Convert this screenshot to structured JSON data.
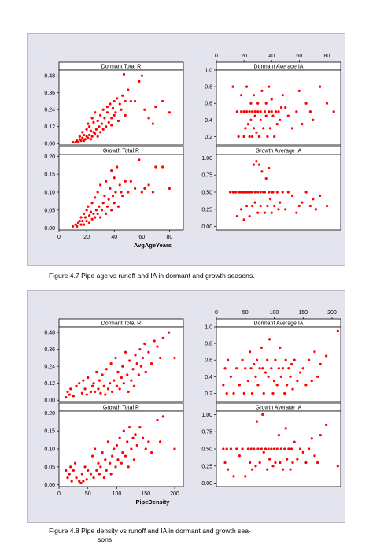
{
  "figures": [
    {
      "caption": "Figure 4.7  Pipe age vs runoff and IA in dormant and growth seasons.",
      "xlabel": "AvgAgeYears",
      "xticks": [
        0,
        20,
        40,
        60,
        80
      ],
      "panels": [
        {
          "title": "Dormant Total R",
          "yticks": [
            "0.48",
            "0.36",
            "0.24",
            "0.12",
            "0.00"
          ]
        },
        {
          "title": "Dormant Average IA",
          "yticks": [
            "1.0",
            "0.8",
            "0.6",
            "0.4",
            "0.2"
          ]
        },
        {
          "title": "Growth Total R",
          "yticks": [
            "0.20",
            "0.15",
            "0.10",
            "0.05",
            "0.00"
          ]
        },
        {
          "title": "Growth Average IA",
          "yticks": [
            "1.00",
            "0.75",
            "0.50",
            "0.25",
            "0.00"
          ]
        }
      ]
    },
    {
      "caption": "Figure 4.8  Pipe density vs runoff and IA in dormant and growth seasons.",
      "caption_line1": "Figure 4.8  Pipe density vs runoff and IA in dormant and growth sea-",
      "caption_line2": "sons.",
      "xlabel": "PipeDensity",
      "xticks": [
        0,
        50,
        100,
        150,
        200
      ],
      "panels": [
        {
          "title": "Dormant Total R",
          "yticks": [
            "0.48",
            "0.36",
            "0.24",
            "0.12",
            "0.00"
          ]
        },
        {
          "title": "Dormant Average IA",
          "yticks": [
            "1.0",
            "0.8",
            "0.6",
            "0.4",
            "0.2"
          ]
        },
        {
          "title": "Growth Total R",
          "yticks": [
            "0.20",
            "0.15",
            "0.10",
            "0.05",
            "0.00"
          ]
        },
        {
          "title": "Growth Average IA",
          "yticks": [
            "1.00",
            "0.75",
            "0.50",
            "0.25",
            "0.00"
          ]
        }
      ]
    }
  ],
  "chart_data": [
    {
      "type": "scatter",
      "title": "",
      "xlabel": "AvgAgeYears",
      "xlim": [
        0,
        90
      ],
      "marker_color": "#ff0000",
      "panels": [
        {
          "name": "Dormant Total R",
          "ylim": [
            -0.01,
            0.52
          ],
          "x": [
            10,
            12,
            13,
            14,
            15,
            15,
            16,
            17,
            17,
            18,
            18,
            19,
            20,
            20,
            21,
            21,
            22,
            22,
            23,
            23,
            24,
            24,
            25,
            25,
            26,
            26,
            27,
            28,
            28,
            29,
            30,
            30,
            31,
            32,
            32,
            33,
            34,
            35,
            35,
            36,
            37,
            38,
            38,
            39,
            40,
            40,
            41,
            42,
            43,
            44,
            45,
            46,
            47,
            48,
            48,
            50,
            52,
            55,
            58,
            60,
            62,
            65,
            68,
            70,
            75,
            80
          ],
          "y": [
            0.01,
            0.01,
            0.02,
            0.01,
            0.03,
            0.05,
            0.02,
            0.04,
            0.08,
            0.02,
            0.06,
            0.03,
            0.05,
            0.1,
            0.04,
            0.14,
            0.06,
            0.12,
            0.03,
            0.09,
            0.05,
            0.18,
            0.08,
            0.15,
            0.07,
            0.22,
            0.1,
            0.05,
            0.16,
            0.12,
            0.08,
            0.2,
            0.14,
            0.1,
            0.24,
            0.18,
            0.12,
            0.22,
            0.26,
            0.15,
            0.28,
            0.18,
            0.13,
            0.25,
            0.3,
            0.2,
            0.22,
            0.32,
            0.16,
            0.28,
            0.24,
            0.34,
            0.49,
            0.3,
            0.2,
            0.38,
            0.3,
            0.3,
            0.44,
            0.48,
            0.24,
            0.18,
            0.14,
            0.26,
            0.3,
            0.22
          ]
        },
        {
          "name": "Dormant Average IA",
          "ylim": [
            0.1,
            1.0
          ],
          "x": [
            12,
            15,
            16,
            18,
            18,
            20,
            20,
            21,
            22,
            22,
            23,
            24,
            24,
            25,
            25,
            26,
            26,
            27,
            27,
            28,
            28,
            29,
            30,
            30,
            31,
            32,
            32,
            33,
            34,
            35,
            36,
            36,
            37,
            38,
            38,
            39,
            40,
            40,
            41,
            42,
            43,
            44,
            45,
            46,
            47,
            48,
            50,
            52,
            55,
            58,
            60,
            62,
            65,
            68,
            70,
            75,
            80,
            85
          ],
          "y": [
            0.8,
            0.5,
            0.2,
            0.7,
            0.5,
            0.5,
            0.2,
            0.3,
            0.5,
            0.8,
            0.35,
            0.2,
            0.5,
            0.6,
            0.4,
            0.2,
            0.5,
            0.3,
            0.7,
            0.5,
            0.45,
            0.25,
            0.5,
            0.6,
            0.2,
            0.4,
            0.5,
            0.75,
            0.3,
            0.5,
            0.6,
            0.45,
            0.2,
            0.5,
            0.8,
            0.3,
            0.5,
            0.65,
            0.45,
            0.2,
            0.5,
            0.35,
            0.5,
            0.4,
            0.55,
            0.7,
            0.55,
            0.45,
            0.3,
            0.5,
            0.75,
            0.35,
            0.6,
            0.5,
            0.4,
            0.8,
            0.6,
            0.5
          ]
        },
        {
          "name": "Growth Total R",
          "ylim": [
            -0.005,
            0.205
          ],
          "x": [
            10,
            12,
            13,
            14,
            15,
            16,
            16,
            17,
            18,
            18,
            19,
            20,
            20,
            21,
            22,
            22,
            23,
            24,
            24,
            25,
            26,
            26,
            27,
            28,
            28,
            29,
            30,
            30,
            31,
            32,
            33,
            34,
            34,
            35,
            36,
            37,
            38,
            38,
            39,
            40,
            40,
            41,
            42,
            43,
            44,
            45,
            46,
            48,
            50,
            52,
            55,
            58,
            60,
            62,
            65,
            68,
            70,
            75,
            80
          ],
          "y": [
            0.005,
            0.01,
            0.005,
            0.015,
            0.02,
            0.01,
            0.03,
            0.02,
            0.04,
            0.01,
            0.03,
            0.05,
            0.02,
            0.06,
            0.035,
            0.015,
            0.045,
            0.07,
            0.025,
            0.04,
            0.085,
            0.03,
            0.05,
            0.04,
            0.1,
            0.06,
            0.03,
            0.12,
            0.05,
            0.07,
            0.09,
            0.04,
            0.13,
            0.06,
            0.08,
            0.11,
            0.05,
            0.16,
            0.09,
            0.07,
            0.14,
            0.1,
            0.17,
            0.06,
            0.12,
            0.1,
            0.09,
            0.13,
            0.1,
            0.13,
            0.11,
            0.19,
            0.1,
            0.11,
            0.12,
            0.1,
            0.17,
            0.17,
            0.11
          ]
        },
        {
          "name": "Growth Average IA",
          "ylim": [
            -0.05,
            1.05
          ],
          "x": [
            10,
            12,
            13,
            14,
            15,
            16,
            17,
            18,
            18,
            19,
            20,
            20,
            21,
            22,
            22,
            23,
            24,
            24,
            25,
            26,
            26,
            27,
            28,
            28,
            29,
            30,
            30,
            31,
            32,
            32,
            33,
            34,
            35,
            35,
            36,
            37,
            38,
            38,
            39,
            40,
            40,
            41,
            42,
            44,
            45,
            46,
            48,
            50,
            52,
            55,
            58,
            60,
            62,
            65,
            68,
            70,
            72,
            75,
            80
          ],
          "y": [
            0.5,
            0.5,
            0.5,
            0.5,
            0.15,
            0.5,
            0.5,
            0.5,
            0.25,
            0.5,
            0.5,
            0.1,
            0.5,
            0.5,
            0.3,
            0.5,
            0.5,
            0.15,
            0.5,
            0.5,
            0.3,
            0.9,
            0.5,
            0.35,
            0.95,
            0.5,
            0.2,
            0.9,
            0.5,
            0.3,
            0.8,
            0.5,
            0.2,
            0.5,
            0.7,
            0.3,
            0.5,
            0.85,
            0.4,
            0.5,
            0.2,
            0.5,
            0.3,
            0.5,
            0.25,
            0.35,
            0.5,
            0.25,
            0.5,
            0.45,
            0.2,
            0.3,
            0.35,
            0.5,
            0.3,
            0.4,
            0.25,
            0.45,
            0.3
          ]
        }
      ]
    },
    {
      "type": "scatter",
      "title": "",
      "xlabel": "PipeDensity",
      "xlim": [
        0,
        215
      ],
      "marker_color": "#ff0000",
      "panels": [
        {
          "name": "Dormant Total R",
          "ylim": [
            -0.01,
            0.52
          ],
          "x": [
            12,
            15,
            18,
            20,
            25,
            30,
            35,
            40,
            42,
            45,
            48,
            50,
            55,
            58,
            60,
            62,
            65,
            68,
            70,
            72,
            75,
            78,
            80,
            82,
            85,
            88,
            90,
            92,
            95,
            98,
            100,
            102,
            105,
            108,
            110,
            112,
            115,
            118,
            120,
            122,
            125,
            128,
            130,
            132,
            135,
            138,
            140,
            142,
            145,
            148,
            150,
            155,
            160,
            165,
            170,
            175,
            180,
            190,
            200
          ],
          "y": [
            0.02,
            0.06,
            0.04,
            0.08,
            0.03,
            0.1,
            0.12,
            0.05,
            0.14,
            0.08,
            0.04,
            0.16,
            0.06,
            0.1,
            0.12,
            0.06,
            0.2,
            0.08,
            0.14,
            0.05,
            0.18,
            0.1,
            0.04,
            0.22,
            0.08,
            0.12,
            0.26,
            0.06,
            0.14,
            0.3,
            0.1,
            0.2,
            0.08,
            0.16,
            0.24,
            0.12,
            0.34,
            0.18,
            0.06,
            0.28,
            0.14,
            0.22,
            0.1,
            0.32,
            0.26,
            0.18,
            0.36,
            0.24,
            0.3,
            0.4,
            0.2,
            0.34,
            0.26,
            0.42,
            0.38,
            0.3,
            0.44,
            0.48,
            0.3
          ]
        },
        {
          "name": "Dormant Average IA",
          "ylim": [
            0.1,
            1.0
          ],
          "x": [
            12,
            15,
            18,
            20,
            25,
            30,
            35,
            40,
            45,
            48,
            50,
            55,
            58,
            60,
            62,
            65,
            68,
            70,
            72,
            75,
            78,
            80,
            82,
            85,
            88,
            90,
            92,
            95,
            98,
            100,
            102,
            105,
            108,
            110,
            112,
            115,
            118,
            120,
            122,
            125,
            128,
            130,
            132,
            135,
            140,
            145,
            150,
            155,
            160,
            165,
            170,
            175,
            180,
            190,
            210
          ],
          "y": [
            0.3,
            0.5,
            0.2,
            0.6,
            0.4,
            0.2,
            0.5,
            0.3,
            0.6,
            0.2,
            0.5,
            0.35,
            0.7,
            0.5,
            0.2,
            0.55,
            0.4,
            0.6,
            0.3,
            0.5,
            0.75,
            0.5,
            0.2,
            0.45,
            0.6,
            0.4,
            0.85,
            0.5,
            0.2,
            0.35,
            0.6,
            0.3,
            0.5,
            0.75,
            0.4,
            0.5,
            0.2,
            0.6,
            0.3,
            0.5,
            0.4,
            0.55,
            0.25,
            0.6,
            0.35,
            0.45,
            0.5,
            0.3,
            0.6,
            0.35,
            0.7,
            0.4,
            0.55,
            0.65,
            0.95
          ]
        },
        {
          "name": "Growth Total R",
          "ylim": [
            -0.005,
            0.205
          ],
          "x": [
            12,
            15,
            18,
            20,
            22,
            25,
            28,
            30,
            35,
            38,
            40,
            42,
            45,
            48,
            50,
            55,
            58,
            60,
            62,
            65,
            68,
            70,
            72,
            75,
            78,
            80,
            82,
            85,
            88,
            90,
            92,
            95,
            98,
            100,
            102,
            105,
            108,
            110,
            112,
            115,
            118,
            120,
            122,
            125,
            128,
            130,
            132,
            135,
            140,
            145,
            150,
            155,
            160,
            170,
            175,
            180,
            200
          ],
          "y": [
            0.04,
            0.02,
            0.03,
            0.05,
            0.01,
            0.04,
            0.06,
            0.02,
            0.01,
            0.005,
            0.03,
            0.01,
            0.05,
            0.015,
            0.04,
            0.03,
            0.08,
            0.02,
            0.1,
            0.04,
            0.06,
            0.03,
            0.05,
            0.09,
            0.02,
            0.07,
            0.04,
            0.12,
            0.06,
            0.03,
            0.08,
            0.1,
            0.05,
            0.11,
            0.07,
            0.13,
            0.06,
            0.09,
            0.15,
            0.08,
            0.12,
            0.05,
            0.16,
            0.1,
            0.13,
            0.07,
            0.14,
            0.11,
            0.16,
            0.13,
            0.1,
            0.12,
            0.09,
            0.18,
            0.12,
            0.19,
            0.1
          ]
        },
        {
          "name": "Growth Average IA",
          "ylim": [
            -0.05,
            1.05
          ],
          "x": [
            12,
            15,
            18,
            20,
            25,
            30,
            35,
            40,
            45,
            50,
            55,
            58,
            60,
            62,
            65,
            68,
            70,
            72,
            75,
            78,
            80,
            82,
            85,
            88,
            90,
            92,
            95,
            98,
            100,
            102,
            105,
            108,
            110,
            112,
            115,
            118,
            120,
            122,
            125,
            128,
            130,
            132,
            135,
            140,
            145,
            150,
            155,
            160,
            165,
            170,
            175,
            180,
            190,
            210
          ],
          "y": [
            0.5,
            0.3,
            0.5,
            0.2,
            0.5,
            0.1,
            0.5,
            0.4,
            0.5,
            0.1,
            0.5,
            0.3,
            0.5,
            0.2,
            0.5,
            0.25,
            0.9,
            0.5,
            0.3,
            0.5,
            1.0,
            0.45,
            0.5,
            0.2,
            0.5,
            0.35,
            0.5,
            0.25,
            0.5,
            0.3,
            0.5,
            0.7,
            0.3,
            0.5,
            0.2,
            0.5,
            0.8,
            0.35,
            0.5,
            0.2,
            0.5,
            0.3,
            0.6,
            0.35,
            0.5,
            0.45,
            0.3,
            0.5,
            0.65,
            0.4,
            0.3,
            0.7,
            0.85,
            0.25
          ]
        }
      ]
    }
  ]
}
